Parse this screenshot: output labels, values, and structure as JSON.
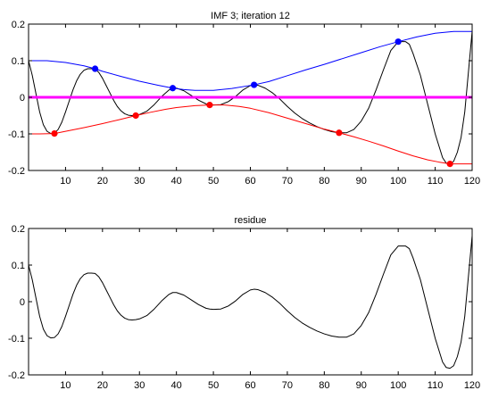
{
  "chart_data": [
    {
      "type": "line",
      "title": "IMF 3;   iteration 12",
      "xlim": [
        0,
        120
      ],
      "ylim": [
        -0.2,
        0.2
      ],
      "xticks": [
        10,
        20,
        30,
        40,
        50,
        60,
        70,
        80,
        90,
        100,
        110,
        120
      ],
      "yticks": [
        -0.2,
        -0.1,
        0,
        0.1,
        0.2
      ],
      "ytick_labels": [
        "-0.2",
        "-0.1",
        "0",
        "0.1",
        "0.2"
      ],
      "grid": false,
      "series": [
        {
          "color": "#000000",
          "style": "line",
          "x": [
            0,
            1,
            2,
            3,
            4,
            5,
            6,
            7,
            8,
            9,
            10,
            11,
            12,
            13,
            14,
            15,
            16,
            17,
            18,
            19,
            20,
            21,
            22,
            23,
            24,
            25,
            26,
            27,
            28,
            29,
            30,
            32,
            34,
            36,
            38,
            39,
            40,
            42,
            44,
            46,
            48,
            49,
            50,
            52,
            54,
            56,
            58,
            60,
            61,
            62,
            64,
            66,
            68,
            70,
            72,
            74,
            76,
            78,
            80,
            82,
            84,
            86,
            88,
            90,
            92,
            94,
            96,
            98,
            100,
            102,
            103,
            104,
            106,
            108,
            110,
            112,
            113,
            114,
            115,
            116,
            117,
            118,
            119,
            120
          ],
          "y": [
            0.1,
            0.06,
            0.01,
            -0.04,
            -0.075,
            -0.093,
            -0.099,
            -0.098,
            -0.088,
            -0.068,
            -0.04,
            -0.01,
            0.02,
            0.045,
            0.063,
            0.074,
            0.078,
            0.078,
            0.077,
            0.068,
            0.052,
            0.032,
            0.012,
            -0.008,
            -0.025,
            -0.037,
            -0.045,
            -0.049,
            -0.05,
            -0.049,
            -0.047,
            -0.038,
            -0.02,
            0.002,
            0.02,
            0.025,
            0.025,
            0.018,
            0.005,
            -0.008,
            -0.018,
            -0.02,
            -0.021,
            -0.02,
            -0.012,
            0.002,
            0.02,
            0.032,
            0.034,
            0.033,
            0.025,
            0.012,
            -0.005,
            -0.025,
            -0.043,
            -0.058,
            -0.07,
            -0.08,
            -0.088,
            -0.094,
            -0.097,
            -0.097,
            -0.088,
            -0.065,
            -0.03,
            0.02,
            0.075,
            0.128,
            0.152,
            0.152,
            0.145,
            0.12,
            0.06,
            -0.02,
            -0.1,
            -0.165,
            -0.18,
            -0.182,
            -0.175,
            -0.15,
            -0.11,
            -0.04,
            0.07,
            0.18
          ]
        },
        {
          "color": "#0000ff",
          "style": "line",
          "x": [
            0,
            5,
            10,
            15,
            18,
            20,
            25,
            30,
            35,
            39,
            42,
            45,
            50,
            55,
            61,
            65,
            70,
            75,
            80,
            85,
            90,
            95,
            100,
            105,
            110,
            115,
            120
          ],
          "y": [
            0.1,
            0.1,
            0.095,
            0.086,
            0.078,
            0.071,
            0.057,
            0.044,
            0.033,
            0.025,
            0.021,
            0.019,
            0.019,
            0.024,
            0.034,
            0.043,
            0.059,
            0.075,
            0.09,
            0.106,
            0.122,
            0.138,
            0.152,
            0.165,
            0.175,
            0.18,
            0.18
          ]
        },
        {
          "color": "#ff0000",
          "style": "line",
          "x": [
            0,
            3,
            7,
            10,
            15,
            20,
            25,
            29,
            33,
            37,
            40,
            45,
            49,
            53,
            57,
            60,
            65,
            70,
            75,
            80,
            84,
            88,
            92,
            96,
            100,
            104,
            108,
            111,
            114,
            116,
            120
          ],
          "y": [
            -0.1,
            -0.1,
            -0.099,
            -0.093,
            -0.083,
            -0.072,
            -0.06,
            -0.05,
            -0.041,
            -0.033,
            -0.028,
            -0.023,
            -0.021,
            -0.021,
            -0.025,
            -0.03,
            -0.042,
            -0.057,
            -0.072,
            -0.087,
            -0.097,
            -0.108,
            -0.12,
            -0.133,
            -0.147,
            -0.16,
            -0.171,
            -0.177,
            -0.182,
            -0.182,
            -0.182
          ]
        },
        {
          "color": "#ff00ff",
          "style": "line",
          "x": [
            0,
            120
          ],
          "y": [
            0,
            0
          ]
        },
        {
          "color": "#0000ff",
          "style": "markers",
          "x": [
            18,
            39,
            61,
            100
          ],
          "y": [
            0.078,
            0.025,
            0.034,
            0.152
          ]
        },
        {
          "color": "#ff0000",
          "style": "markers",
          "x": [
            7,
            29,
            49,
            84,
            114
          ],
          "y": [
            -0.099,
            -0.05,
            -0.021,
            -0.097,
            -0.182
          ]
        }
      ]
    },
    {
      "type": "line",
      "title": "residue",
      "xlim": [
        0,
        120
      ],
      "ylim": [
        -0.2,
        0.2
      ],
      "xticks": [
        10,
        20,
        30,
        40,
        50,
        60,
        70,
        80,
        90,
        100,
        110,
        120
      ],
      "yticks": [
        -0.2,
        -0.1,
        0,
        0.1,
        0.2
      ],
      "ytick_labels": [
        "-0.2",
        "-0.1",
        "0",
        "0.1",
        "0.2"
      ],
      "grid": false,
      "series": [
        {
          "color": "#000000",
          "style": "line",
          "x": [
            0,
            1,
            2,
            3,
            4,
            5,
            6,
            7,
            8,
            9,
            10,
            11,
            12,
            13,
            14,
            15,
            16,
            17,
            18,
            19,
            20,
            21,
            22,
            23,
            24,
            25,
            26,
            27,
            28,
            29,
            30,
            32,
            34,
            36,
            38,
            39,
            40,
            42,
            44,
            46,
            48,
            49,
            50,
            52,
            54,
            56,
            58,
            60,
            61,
            62,
            64,
            66,
            68,
            70,
            72,
            74,
            76,
            78,
            80,
            82,
            84,
            86,
            88,
            90,
            92,
            94,
            96,
            98,
            100,
            102,
            103,
            104,
            106,
            108,
            110,
            112,
            113,
            114,
            115,
            116,
            117,
            118,
            119,
            120
          ],
          "y": [
            0.1,
            0.06,
            0.01,
            -0.04,
            -0.075,
            -0.093,
            -0.099,
            -0.098,
            -0.088,
            -0.068,
            -0.04,
            -0.01,
            0.02,
            0.045,
            0.063,
            0.074,
            0.078,
            0.078,
            0.077,
            0.068,
            0.052,
            0.032,
            0.012,
            -0.008,
            -0.025,
            -0.037,
            -0.045,
            -0.049,
            -0.05,
            -0.049,
            -0.047,
            -0.038,
            -0.02,
            0.002,
            0.02,
            0.025,
            0.025,
            0.018,
            0.005,
            -0.008,
            -0.018,
            -0.02,
            -0.021,
            -0.02,
            -0.012,
            0.002,
            0.02,
            0.032,
            0.034,
            0.033,
            0.025,
            0.012,
            -0.005,
            -0.025,
            -0.043,
            -0.058,
            -0.07,
            -0.08,
            -0.088,
            -0.094,
            -0.097,
            -0.097,
            -0.088,
            -0.065,
            -0.03,
            0.02,
            0.075,
            0.128,
            0.152,
            0.152,
            0.145,
            0.12,
            0.06,
            -0.02,
            -0.1,
            -0.165,
            -0.18,
            -0.182,
            -0.175,
            -0.15,
            -0.11,
            -0.04,
            0.07,
            0.18
          ]
        }
      ]
    }
  ]
}
